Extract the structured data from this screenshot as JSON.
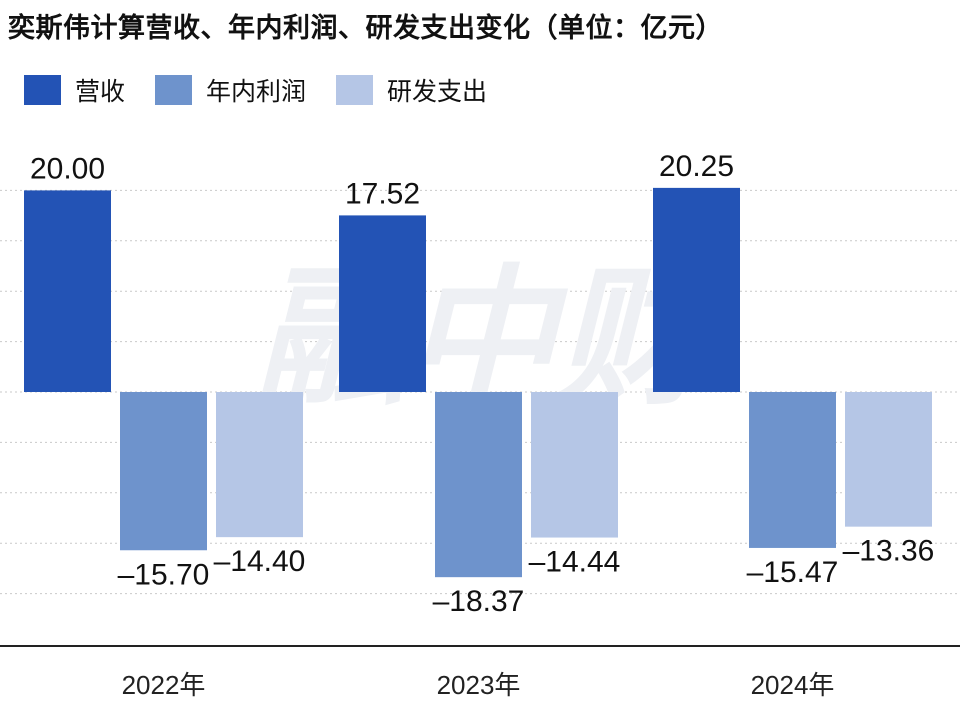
{
  "title": "奕斯伟计算营收、年内利润、研发支出变化（单位：亿元）",
  "watermark": "融中财",
  "colors": {
    "营收": "#2353B5",
    "年内利润": "#6E93CC",
    "研发支出": "#B5C6E6"
  },
  "legend": [
    {
      "name": "营收",
      "color": "#2353B5"
    },
    {
      "name": "年内利润",
      "color": "#6E93CC"
    },
    {
      "name": "研发支出",
      "color": "#B5C6E6"
    }
  ],
  "chart_data": {
    "type": "bar",
    "title": "奕斯伟计算营收、年内利润、研发支出变化（单位：亿元）",
    "categories": [
      "2022年",
      "2023年",
      "2024年"
    ],
    "series": [
      {
        "name": "营收",
        "values": [
          20.0,
          17.52,
          20.25
        ],
        "labels": [
          "20.00",
          "17.52",
          "20.25"
        ]
      },
      {
        "name": "年内利润",
        "values": [
          -15.7,
          -18.37,
          -15.47
        ],
        "labels": [
          "–15.70",
          "–18.37",
          "–15.47"
        ]
      },
      {
        "name": "研发支出",
        "values": [
          -14.4,
          -14.44,
          -13.36
        ],
        "labels": [
          "–14.40",
          "–14.44",
          "–13.36"
        ]
      }
    ],
    "ylim": [
      -25,
      25
    ],
    "grid": true,
    "legend_position": "top-left"
  }
}
